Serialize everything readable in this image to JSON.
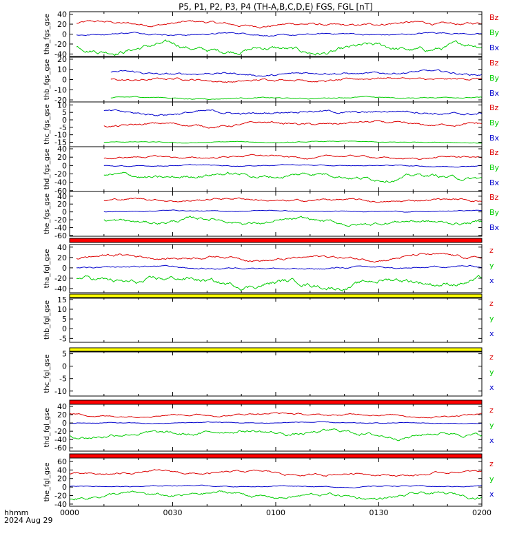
{
  "title": "P5, P1, P2, P3, P4 (TH-A,B,C,D,E) FGS, FGL [nT]",
  "time_axis": {
    "ticks": [
      "0000",
      "0030",
      "0100",
      "0130",
      "0200"
    ],
    "range_minutes": [
      0,
      120
    ],
    "corner_label_1": "hhmm",
    "corner_label_2": "2024 Aug 29"
  },
  "colors": {
    "red": "#dd0000",
    "green": "#00cc00",
    "blue": "#0000cc",
    "bar_red": "#ff0000",
    "bar_yellow": "#ffff00"
  },
  "chart_data": [
    {
      "type": "line",
      "ylabel": "tha_fgs_gse",
      "ylim": [
        -45,
        45
      ],
      "yticks": [
        40,
        20,
        0,
        -20,
        -40
      ],
      "series": [
        {
          "name": "Bz",
          "color": "red",
          "base": 20,
          "amp": 5,
          "x_start": 2,
          "x_end": 120
        },
        {
          "name": "By",
          "color": "green",
          "base": -30,
          "amp": 9,
          "x_start": 2,
          "x_end": 120
        },
        {
          "name": "Bx",
          "color": "blue",
          "base": 0,
          "amp": 3,
          "x_start": 2,
          "x_end": 120
        }
      ]
    },
    {
      "type": "line",
      "ylabel": "thb_fgs_gse",
      "ylim": [
        -22,
        22
      ],
      "yticks": [
        20,
        10,
        0,
        -10,
        -20
      ],
      "series": [
        {
          "name": "Bz",
          "color": "red",
          "base": 0,
          "amp": 2,
          "x_start": 12,
          "x_end": 120
        },
        {
          "name": "By",
          "color": "green",
          "base": -18,
          "amp": 1,
          "x_start": 12,
          "x_end": 120
        },
        {
          "name": "Bx",
          "color": "blue",
          "base": 6,
          "amp": 2,
          "x_start": 12,
          "x_end": 120
        }
      ]
    },
    {
      "type": "line",
      "ylabel": "thc_fgs_gse",
      "ylim": [
        -18,
        12
      ],
      "yticks": [
        10,
        5,
        0,
        -5,
        -10,
        -15
      ],
      "series": [
        {
          "name": "Bz",
          "color": "red",
          "base": -3,
          "amp": 1.5,
          "x_start": 10,
          "x_end": 120
        },
        {
          "name": "By",
          "color": "green",
          "base": -15,
          "amp": 0.5,
          "x_start": 10,
          "x_end": 120
        },
        {
          "name": "Bx",
          "color": "blue",
          "base": 5,
          "amp": 1.5,
          "x_start": 10,
          "x_end": 120
        }
      ]
    },
    {
      "type": "line",
      "ylabel": "thd_fgs_gse",
      "ylim": [
        -62,
        45
      ],
      "yticks": [
        40,
        20,
        0,
        -20,
        -40,
        -60
      ],
      "series": [
        {
          "name": "Bz",
          "color": "red",
          "base": 20,
          "amp": 4,
          "x_start": 10,
          "x_end": 120
        },
        {
          "name": "By",
          "color": "green",
          "base": -25,
          "amp": 8,
          "x_start": 10,
          "x_end": 120
        },
        {
          "name": "Bx",
          "color": "blue",
          "base": 0,
          "amp": 2,
          "x_start": 10,
          "x_end": 120
        }
      ]
    },
    {
      "type": "line",
      "ylabel": "the_fgs_gse",
      "ylim": [
        -62,
        52
      ],
      "yticks": [
        40,
        20,
        0,
        -20,
        -40,
        -60
      ],
      "series": [
        {
          "name": "Bz",
          "color": "red",
          "base": 30,
          "amp": 5,
          "x_start": 10,
          "x_end": 120
        },
        {
          "name": "By",
          "color": "green",
          "base": -25,
          "amp": 8,
          "x_start": 10,
          "x_end": 120
        },
        {
          "name": "Bx",
          "color": "blue",
          "base": 2,
          "amp": 2,
          "x_start": 10,
          "x_end": 120
        }
      ]
    },
    {
      "type": "line",
      "ylabel": "tha_fgl_gse",
      "ylim": [
        -48,
        45
      ],
      "yticks": [
        40,
        20,
        0,
        -20,
        -40
      ],
      "series": [
        {
          "name": "z",
          "color": "red",
          "base": 20,
          "amp": 5,
          "x_start": 2,
          "x_end": 120
        },
        {
          "name": "y",
          "color": "green",
          "base": -28,
          "amp": 9,
          "x_start": 2,
          "x_end": 120
        },
        {
          "name": "x",
          "color": "blue",
          "base": 0,
          "amp": 3,
          "x_start": 2,
          "x_end": 120
        }
      ]
    },
    {
      "type": "line",
      "ylabel": "thb_fgl_gse",
      "ylim": [
        -7,
        16
      ],
      "yticks": [
        15,
        10,
        5,
        0,
        -5
      ],
      "series": [
        {
          "name": "z",
          "color": "red",
          "base": 0,
          "amp": 0,
          "x_start": 0,
          "x_end": 0
        },
        {
          "name": "y",
          "color": "green",
          "base": 0,
          "amp": 0,
          "x_start": 0,
          "x_end": 0
        },
        {
          "name": "x",
          "color": "blue",
          "base": 0,
          "amp": 0,
          "x_start": 0,
          "x_end": 0
        }
      ]
    },
    {
      "type": "line",
      "ylabel": "thc_fgl_gse",
      "ylim": [
        -12,
        6
      ],
      "yticks": [
        5,
        0,
        -5,
        -10
      ],
      "series": [
        {
          "name": "z",
          "color": "red",
          "base": 0,
          "amp": 0,
          "x_start": 0,
          "x_end": 0
        },
        {
          "name": "y",
          "color": "green",
          "base": 0,
          "amp": 0,
          "x_start": 0,
          "x_end": 0
        },
        {
          "name": "x",
          "color": "blue",
          "base": 0,
          "amp": 0,
          "x_start": 0,
          "x_end": 0
        }
      ]
    },
    {
      "type": "line",
      "ylabel": "thd_fgl_gse",
      "ylim": [
        -68,
        45
      ],
      "yticks": [
        40,
        20,
        0,
        -20,
        -40,
        -60
      ],
      "series": [
        {
          "name": "z",
          "color": "red",
          "base": 20,
          "amp": 4,
          "x_start": 0,
          "x_end": 120
        },
        {
          "name": "y",
          "color": "green",
          "base": -25,
          "amp": 8,
          "x_start": 0,
          "x_end": 120
        },
        {
          "name": "x",
          "color": "blue",
          "base": 0,
          "amp": 2,
          "x_start": 0,
          "x_end": 120
        }
      ]
    },
    {
      "type": "line",
      "ylabel": "the_fgl_gse",
      "ylim": [
        -45,
        68
      ],
      "yticks": [
        60,
        40,
        20,
        0,
        -20,
        -40
      ],
      "series": [
        {
          "name": "z",
          "color": "red",
          "base": 32,
          "amp": 5,
          "x_start": 0,
          "x_end": 120
        },
        {
          "name": "y",
          "color": "green",
          "base": -20,
          "amp": 7,
          "x_start": 0,
          "x_end": 120
        },
        {
          "name": "x",
          "color": "blue",
          "base": 2,
          "amp": 2,
          "x_start": 0,
          "x_end": 120
        }
      ]
    }
  ],
  "separator_bars": [
    {
      "after_panel": 4,
      "color": "bar_red"
    },
    {
      "after_panel": 5,
      "color": "bar_yellow"
    },
    {
      "after_panel": 6,
      "color": "bar_yellow"
    },
    {
      "after_panel": 7,
      "color": "bar_red"
    },
    {
      "after_panel": 8,
      "color": "bar_red"
    }
  ]
}
